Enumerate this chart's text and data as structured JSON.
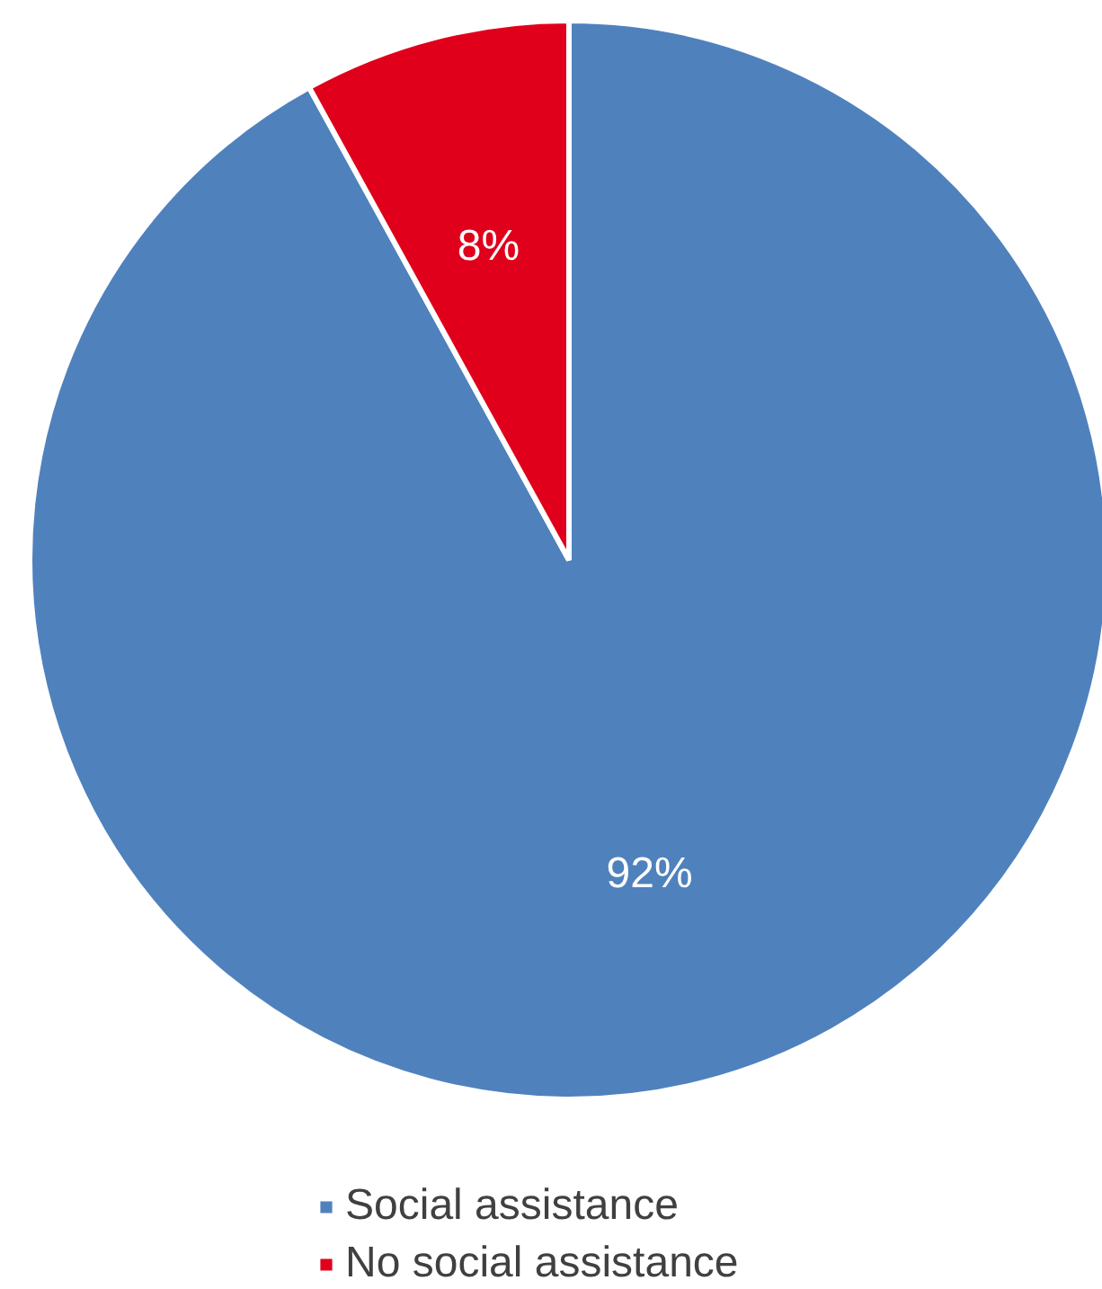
{
  "chart_data": {
    "type": "pie",
    "categories": [
      "Social assistance",
      "No social assistance"
    ],
    "values": [
      92,
      8
    ],
    "colors": [
      "#4f81bd",
      "#e0001b"
    ],
    "value_labels": [
      "92%",
      "8%"
    ],
    "legend": "bottom"
  }
}
